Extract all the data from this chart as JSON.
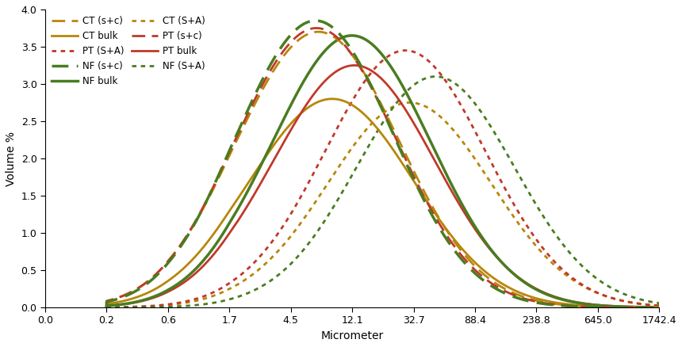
{
  "x_ticks": [
    0.0,
    0.2,
    0.6,
    1.7,
    4.5,
    12.1,
    32.7,
    88.4,
    238.8,
    645.0,
    1742.4
  ],
  "xlabel": "Micrometer",
  "ylabel": "Volume %",
  "ylim": [
    0.0,
    4.0
  ],
  "yticks": [
    0.0,
    0.5,
    1.0,
    1.5,
    2.0,
    2.5,
    3.0,
    3.5,
    4.0
  ],
  "legend": [
    {
      "label": "CT (s+c)",
      "color": "#B8860B",
      "ls": "dashed",
      "lw": 2.0
    },
    {
      "label": "CT bulk",
      "color": "#B8860B",
      "ls": "solid",
      "lw": 2.0
    },
    {
      "label": "PT (S+A)",
      "color": "#C0392B",
      "ls": "dotted",
      "lw": 2.0
    },
    {
      "label": "NF (s+c)",
      "color": "#4a7c20",
      "ls": "dashed",
      "lw": 2.5
    },
    {
      "label": "NF bulk",
      "color": "#4a7c20",
      "ls": "solid",
      "lw": 2.5
    },
    {
      "label": "CT (S+A)",
      "color": "#B8860B",
      "ls": "dotted",
      "lw": 2.0
    },
    {
      "label": "PT (s+c)",
      "color": "#C0392B",
      "ls": "dashed",
      "lw": 2.0
    },
    {
      "label": "PT bulk",
      "color": "#C0392B",
      "ls": "solid",
      "lw": 2.0
    },
    {
      "label": "NF (S+A)",
      "color": "#4a7c20",
      "ls": "dotted",
      "lw": 2.0
    }
  ],
  "curves": {
    "CT (s+c)": {
      "peak_x": 38,
      "sigma": 1.3,
      "peak_y": 3.7
    },
    "CT bulk": {
      "peak_x": 50,
      "sigma": 1.32,
      "peak_y": 2.8
    },
    "PT (S+A)": {
      "peak_x": 155,
      "sigma": 1.3,
      "peak_y": 3.45
    },
    "NF (s+c)": {
      "peak_x": 32,
      "sigma": 1.25,
      "peak_y": 3.85
    },
    "NF bulk": {
      "peak_x": 62,
      "sigma": 1.28,
      "peak_y": 3.65
    },
    "CT (S+A)": {
      "peak_x": 175,
      "sigma": 1.32,
      "peak_y": 2.75
    },
    "PT (s+c)": {
      "peak_x": 35,
      "sigma": 1.28,
      "peak_y": 3.75
    },
    "PT bulk": {
      "peak_x": 68,
      "sigma": 1.3,
      "peak_y": 3.25
    },
    "NF (S+A)": {
      "peak_x": 240,
      "sigma": 1.28,
      "peak_y": 3.1
    }
  },
  "background_color": "#ffffff"
}
